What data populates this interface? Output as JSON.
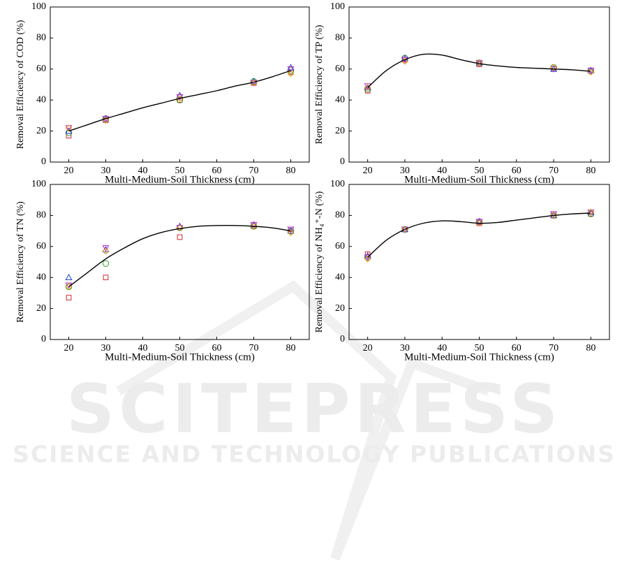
{
  "chart_data": [
    {
      "type": "scatter",
      "xlabel": "Multi-Medium-Soil Thickness (cm)",
      "ylabel": "Removal Efficiency of COD (%)",
      "x": [
        20,
        30,
        50,
        70,
        80
      ],
      "xlim": [
        15,
        85
      ],
      "ylim": [
        0,
        100
      ],
      "xticks": [
        20,
        30,
        40,
        50,
        60,
        70,
        80
      ],
      "yticks": [
        0,
        20,
        40,
        60,
        80,
        100
      ],
      "series": [
        {
          "marker": "square",
          "color": "#d62728",
          "values": [
            17,
            27,
            40,
            51,
            58
          ]
        },
        {
          "marker": "circle",
          "color": "#2ca02c",
          "values": [
            19,
            28,
            40,
            52,
            59
          ]
        },
        {
          "marker": "triangle",
          "color": "#1f3fd4",
          "values": [
            20,
            28,
            43,
            52,
            61
          ]
        },
        {
          "marker": "triangle-down",
          "color": "#c026d3",
          "values": [
            22,
            28,
            42,
            51,
            60
          ]
        },
        {
          "marker": "diamond",
          "color": "#e69a00",
          "values": [
            22,
            27,
            41,
            51,
            57
          ]
        },
        {
          "marker": "line",
          "color": "#000000",
          "x": [
            20,
            25,
            30,
            35,
            40,
            45,
            50,
            55,
            60,
            65,
            70,
            75,
            80
          ],
          "values": [
            20,
            24,
            28,
            31.5,
            35,
            38,
            41,
            43.5,
            46,
            49,
            51.5,
            55,
            59
          ]
        }
      ]
    },
    {
      "type": "scatter",
      "xlabel": "Multi-Medium-Soil Thickness (cm)",
      "ylabel": "Removal Efficiency of TP (%)",
      "x": [
        20,
        30,
        50,
        70,
        80
      ],
      "xlim": [
        15,
        85
      ],
      "ylim": [
        0,
        100
      ],
      "xticks": [
        20,
        30,
        40,
        50,
        60,
        70,
        80
      ],
      "yticks": [
        0,
        20,
        40,
        60,
        80,
        100
      ],
      "series": [
        {
          "marker": "square",
          "color": "#d62728",
          "values": [
            46,
            66,
            63,
            60,
            59
          ]
        },
        {
          "marker": "circle",
          "color": "#2ca02c",
          "values": [
            47,
            67,
            64,
            61,
            59
          ]
        },
        {
          "marker": "triangle",
          "color": "#1f3fd4",
          "values": [
            48,
            67,
            64,
            60,
            59
          ]
        },
        {
          "marker": "triangle-down",
          "color": "#c026d3",
          "values": [
            49,
            66,
            64,
            60,
            59
          ]
        },
        {
          "marker": "diamond",
          "color": "#e69a00",
          "values": [
            48,
            65,
            64,
            61,
            58
          ]
        },
        {
          "marker": "line",
          "color": "#000000",
          "x": [
            20,
            25,
            30,
            35,
            40,
            45,
            50,
            55,
            60,
            65,
            70,
            75,
            80
          ],
          "values": [
            48,
            59,
            66,
            69.5,
            69,
            66,
            63.5,
            62,
            61,
            60.5,
            60,
            59.5,
            58.5
          ]
        }
      ]
    },
    {
      "type": "scatter",
      "xlabel": "Multi-Medium-Soil Thickness (cm)",
      "ylabel": "Removal Efficiency of TN (%)",
      "x": [
        20,
        30,
        50,
        70,
        80
      ],
      "xlim": [
        15,
        85
      ],
      "ylim": [
        0,
        100
      ],
      "xticks": [
        20,
        30,
        40,
        50,
        60,
        70,
        80
      ],
      "yticks": [
        0,
        20,
        40,
        60,
        80,
        100
      ],
      "series": [
        {
          "marker": "square",
          "color": "#d62728",
          "values": [
            27,
            40,
            66,
            73,
            71
          ]
        },
        {
          "marker": "circle",
          "color": "#2ca02c",
          "values": [
            34,
            49,
            72,
            73,
            70
          ]
        },
        {
          "marker": "triangle",
          "color": "#1f3fd4",
          "values": [
            40,
            58,
            73,
            74,
            70
          ]
        },
        {
          "marker": "triangle-down",
          "color": "#c026d3",
          "values": [
            35,
            59,
            72,
            74,
            71
          ]
        },
        {
          "marker": "diamond",
          "color": "#e69a00",
          "values": [
            34,
            57,
            72,
            73,
            69
          ]
        },
        {
          "marker": "line",
          "color": "#000000",
          "x": [
            20,
            25,
            30,
            35,
            40,
            45,
            50,
            55,
            60,
            65,
            70,
            75,
            80
          ],
          "values": [
            34,
            43,
            52,
            59,
            65,
            69,
            71.5,
            73,
            73.5,
            73.5,
            73,
            72,
            70
          ]
        }
      ]
    },
    {
      "type": "scatter",
      "xlabel": "Multi-Medium-Soil Thickness (cm)",
      "ylabel": "Removal Efficiency of NH₄⁺-N (%)",
      "x": [
        20,
        30,
        50,
        70,
        80
      ],
      "xlim": [
        15,
        85
      ],
      "ylim": [
        0,
        100
      ],
      "xticks": [
        20,
        30,
        40,
        50,
        60,
        70,
        80
      ],
      "yticks": [
        0,
        20,
        40,
        60,
        80,
        100
      ],
      "series": [
        {
          "marker": "square",
          "color": "#d62728",
          "values": [
            55,
            71,
            75,
            80,
            81
          ]
        },
        {
          "marker": "circle",
          "color": "#2ca02c",
          "values": [
            53,
            71,
            76,
            80,
            81
          ]
        },
        {
          "marker": "triangle",
          "color": "#1f3fd4",
          "values": [
            54,
            71,
            76,
            80,
            82
          ]
        },
        {
          "marker": "triangle-down",
          "color": "#c026d3",
          "values": [
            53,
            71,
            76,
            81,
            82
          ]
        },
        {
          "marker": "diamond",
          "color": "#e69a00",
          "values": [
            52,
            71,
            75,
            80,
            82
          ]
        },
        {
          "marker": "line",
          "color": "#000000",
          "x": [
            20,
            25,
            30,
            35,
            40,
            45,
            50,
            55,
            60,
            65,
            70,
            75,
            80
          ],
          "values": [
            53,
            64,
            71,
            75,
            76.5,
            76,
            75,
            75.5,
            77,
            78.5,
            80,
            81,
            81.5
          ]
        }
      ]
    }
  ],
  "watermark": {
    "title": "SCITEPRESS",
    "subtitle": "SCIENCE AND TECHNOLOGY PUBLICATIONS"
  }
}
